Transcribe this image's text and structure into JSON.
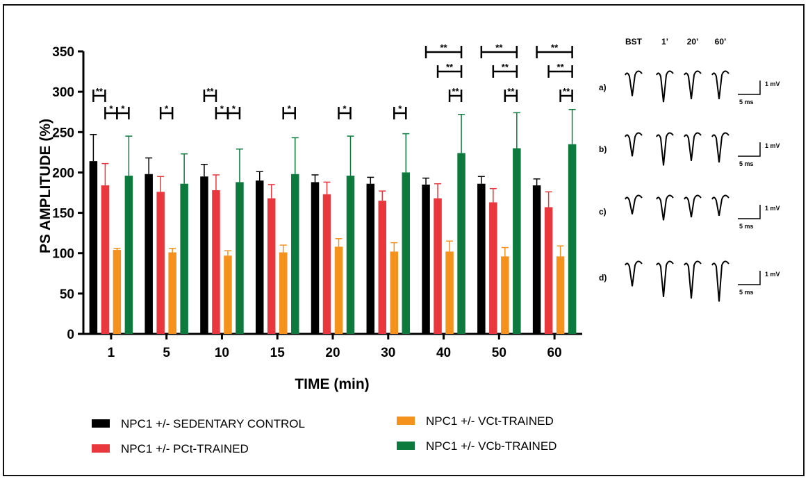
{
  "chart_data": {
    "type": "bar",
    "xlabel": "TIME (min)",
    "ylabel": "PS AMPLITUDE (%)",
    "ylim": [
      0,
      350
    ],
    "yticks": [
      0,
      50,
      100,
      150,
      200,
      250,
      300,
      350
    ],
    "categories": [
      "1",
      "5",
      "10",
      "15",
      "20",
      "30",
      "40",
      "50",
      "60"
    ],
    "series": [
      {
        "name": "NPC1 +/- SEDENTARY CONTROL",
        "color": "#000000",
        "values": [
          214,
          198,
          195,
          190,
          188,
          186,
          185,
          186,
          184
        ],
        "errors": [
          33,
          20,
          15,
          11,
          9,
          8,
          8,
          9,
          8
        ]
      },
      {
        "name": "NPC1 +/- PCt-TRAINED",
        "color": "#e8383d",
        "values": [
          184,
          176,
          178,
          168,
          173,
          165,
          168,
          163,
          157
        ],
        "errors": [
          27,
          19,
          19,
          17,
          15,
          12,
          18,
          17,
          19
        ]
      },
      {
        "name": "NPC1 +/- VCt-TRAINED",
        "color": "#f5921e",
        "values": [
          104,
          101,
          97,
          101,
          108,
          102,
          102,
          96,
          96
        ],
        "errors": [
          2,
          5,
          6,
          9,
          10,
          11,
          13,
          11,
          13
        ]
      },
      {
        "name": "NPC1 +/- VCb-TRAINED",
        "color": "#0b7a3c",
        "values": [
          196,
          186,
          188,
          198,
          196,
          200,
          224,
          230,
          235
        ],
        "errors": [
          49,
          37,
          41,
          45,
          49,
          48,
          48,
          44,
          43
        ]
      }
    ],
    "significance": [
      {
        "group": 0,
        "from": 0,
        "to": 1,
        "level": 2,
        "label": "**"
      },
      {
        "group": 0,
        "from": 1,
        "to": 2,
        "level": 1,
        "label": "*"
      },
      {
        "group": 0,
        "from": 2,
        "to": 3,
        "level": 1,
        "label": "*"
      },
      {
        "group": 1,
        "from": 1,
        "to": 2,
        "level": 1,
        "label": "*"
      },
      {
        "group": 2,
        "from": 0,
        "to": 1,
        "level": 2,
        "label": "**"
      },
      {
        "group": 2,
        "from": 1,
        "to": 2,
        "level": 1,
        "label": "*"
      },
      {
        "group": 2,
        "from": 2,
        "to": 3,
        "level": 1,
        "label": "*"
      },
      {
        "group": 3,
        "from": 2,
        "to": 3,
        "level": 1,
        "label": "*"
      },
      {
        "group": 4,
        "from": 2,
        "to": 3,
        "level": 1,
        "label": "*"
      },
      {
        "group": 5,
        "from": 2,
        "to": 3,
        "level": 1,
        "label": "*"
      },
      {
        "group": 6,
        "from": 0,
        "to": 3,
        "level": 3,
        "label": "**"
      },
      {
        "group": 6,
        "from": 1,
        "to": 3,
        "level": 2,
        "label": "**"
      },
      {
        "group": 6,
        "from": 2,
        "to": 3,
        "level": 1,
        "label": "**"
      },
      {
        "group": 7,
        "from": 0,
        "to": 3,
        "level": 3,
        "label": "**"
      },
      {
        "group": 7,
        "from": 1,
        "to": 3,
        "level": 2,
        "label": "**"
      },
      {
        "group": 7,
        "from": 2,
        "to": 3,
        "level": 1,
        "label": "**"
      },
      {
        "group": 8,
        "from": 0,
        "to": 3,
        "level": 3,
        "label": "**"
      },
      {
        "group": 8,
        "from": 1,
        "to": 3,
        "level": 2,
        "label": "**"
      },
      {
        "group": 8,
        "from": 2,
        "to": 3,
        "level": 1,
        "label": "**"
      }
    ],
    "legend_placement": "bottom"
  },
  "traces": {
    "headers": [
      "BST",
      "1’",
      "20’",
      "60’"
    ],
    "rows": [
      {
        "label": "a)",
        "voltage": "1 mV",
        "time": "5 ms",
        "depths": [
          0.6,
          0.8,
          0.7,
          0.7
        ]
      },
      {
        "label": "b)",
        "voltage": "1 mV",
        "time": "5 ms",
        "depths": [
          0.55,
          0.85,
          0.7,
          0.75
        ]
      },
      {
        "label": "c)",
        "voltage": "1 mV",
        "time": "5 ms",
        "depths": [
          0.4,
          0.6,
          0.5,
          0.45
        ]
      },
      {
        "label": "d)",
        "voltage": "1 mV",
        "time": "5 ms",
        "depths": [
          0.6,
          0.95,
          1.0,
          1.1
        ]
      }
    ]
  }
}
